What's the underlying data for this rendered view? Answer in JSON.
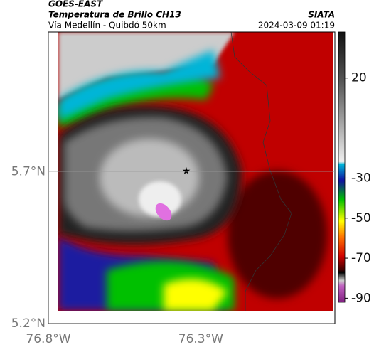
{
  "header": {
    "satellite": "GOES-EAST",
    "product": "Temperatura de Brillo CH13",
    "region": "Vía Medellín - Quibdó 50km",
    "source": "SIATA",
    "datetime": "2024-03-09 01:19"
  },
  "map": {
    "xlim": [
      -76.8,
      -75.86
    ],
    "ylim": [
      5.2,
      6.16
    ],
    "xticks": [
      {
        "value": -76.8,
        "label": "76.8°W"
      },
      {
        "value": -76.3,
        "label": "76.3°W"
      }
    ],
    "yticks": [
      {
        "value": 5.2,
        "label": "5.2°N"
      },
      {
        "value": 5.7,
        "label": "5.7°N"
      }
    ]
  },
  "colorbar": {
    "lim": [
      -92,
      43
    ],
    "ticks": [
      20,
      -30,
      -50,
      -70,
      -90
    ]
  }
}
